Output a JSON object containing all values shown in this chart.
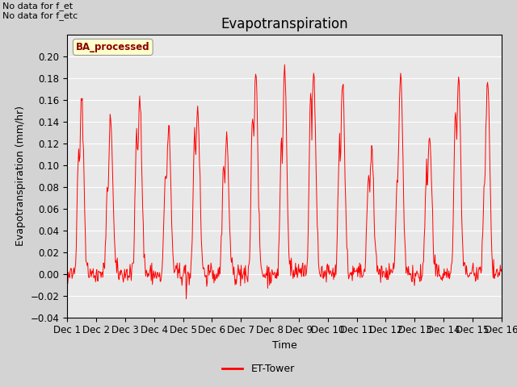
{
  "title": "Evapotranspiration",
  "ylabel": "Evapotranspiration (mm/hr)",
  "xlabel": "Time",
  "ylim": [
    -0.04,
    0.22
  ],
  "yticks": [
    -0.04,
    -0.02,
    0.0,
    0.02,
    0.04,
    0.06,
    0.08,
    0.1,
    0.12,
    0.14,
    0.16,
    0.18,
    0.2
  ],
  "line_color": "red",
  "legend_label": "ET-Tower",
  "subplot_label": "BA_processed",
  "top_left_text1": "No data for f_et",
  "top_left_text2": "No data for f_etc",
  "background_color": "#d3d3d3",
  "plot_bg_color": "#e8e8e8",
  "n_days": 15,
  "points_per_day": 48,
  "x_tick_labels": [
    "Dec 1",
    "Dec 2",
    "Dec 3",
    "Dec 4",
    "Dec 5",
    "Dec 6",
    "Dec 7",
    "Dec 8",
    "Dec 9",
    "Dec 10",
    "Dec 11",
    "Dec 12",
    "Dec 13",
    "Dec 14",
    "Dec 15",
    "Dec 16"
  ],
  "day_peaks": [
    0.16,
    0.143,
    0.165,
    0.134,
    0.155,
    0.125,
    0.185,
    0.19,
    0.185,
    0.178,
    0.116,
    0.185,
    0.126,
    0.181,
    0.176
  ],
  "day_secondary_peaks": [
    0.11,
    0.08,
    0.13,
    0.095,
    0.13,
    0.1,
    0.15,
    0.12,
    0.165,
    0.12,
    0.09,
    0.09,
    0.095,
    0.155,
    0.08
  ],
  "night_base": -0.008,
  "title_fontsize": 12,
  "label_fontsize": 9,
  "tick_fontsize": 8.5
}
